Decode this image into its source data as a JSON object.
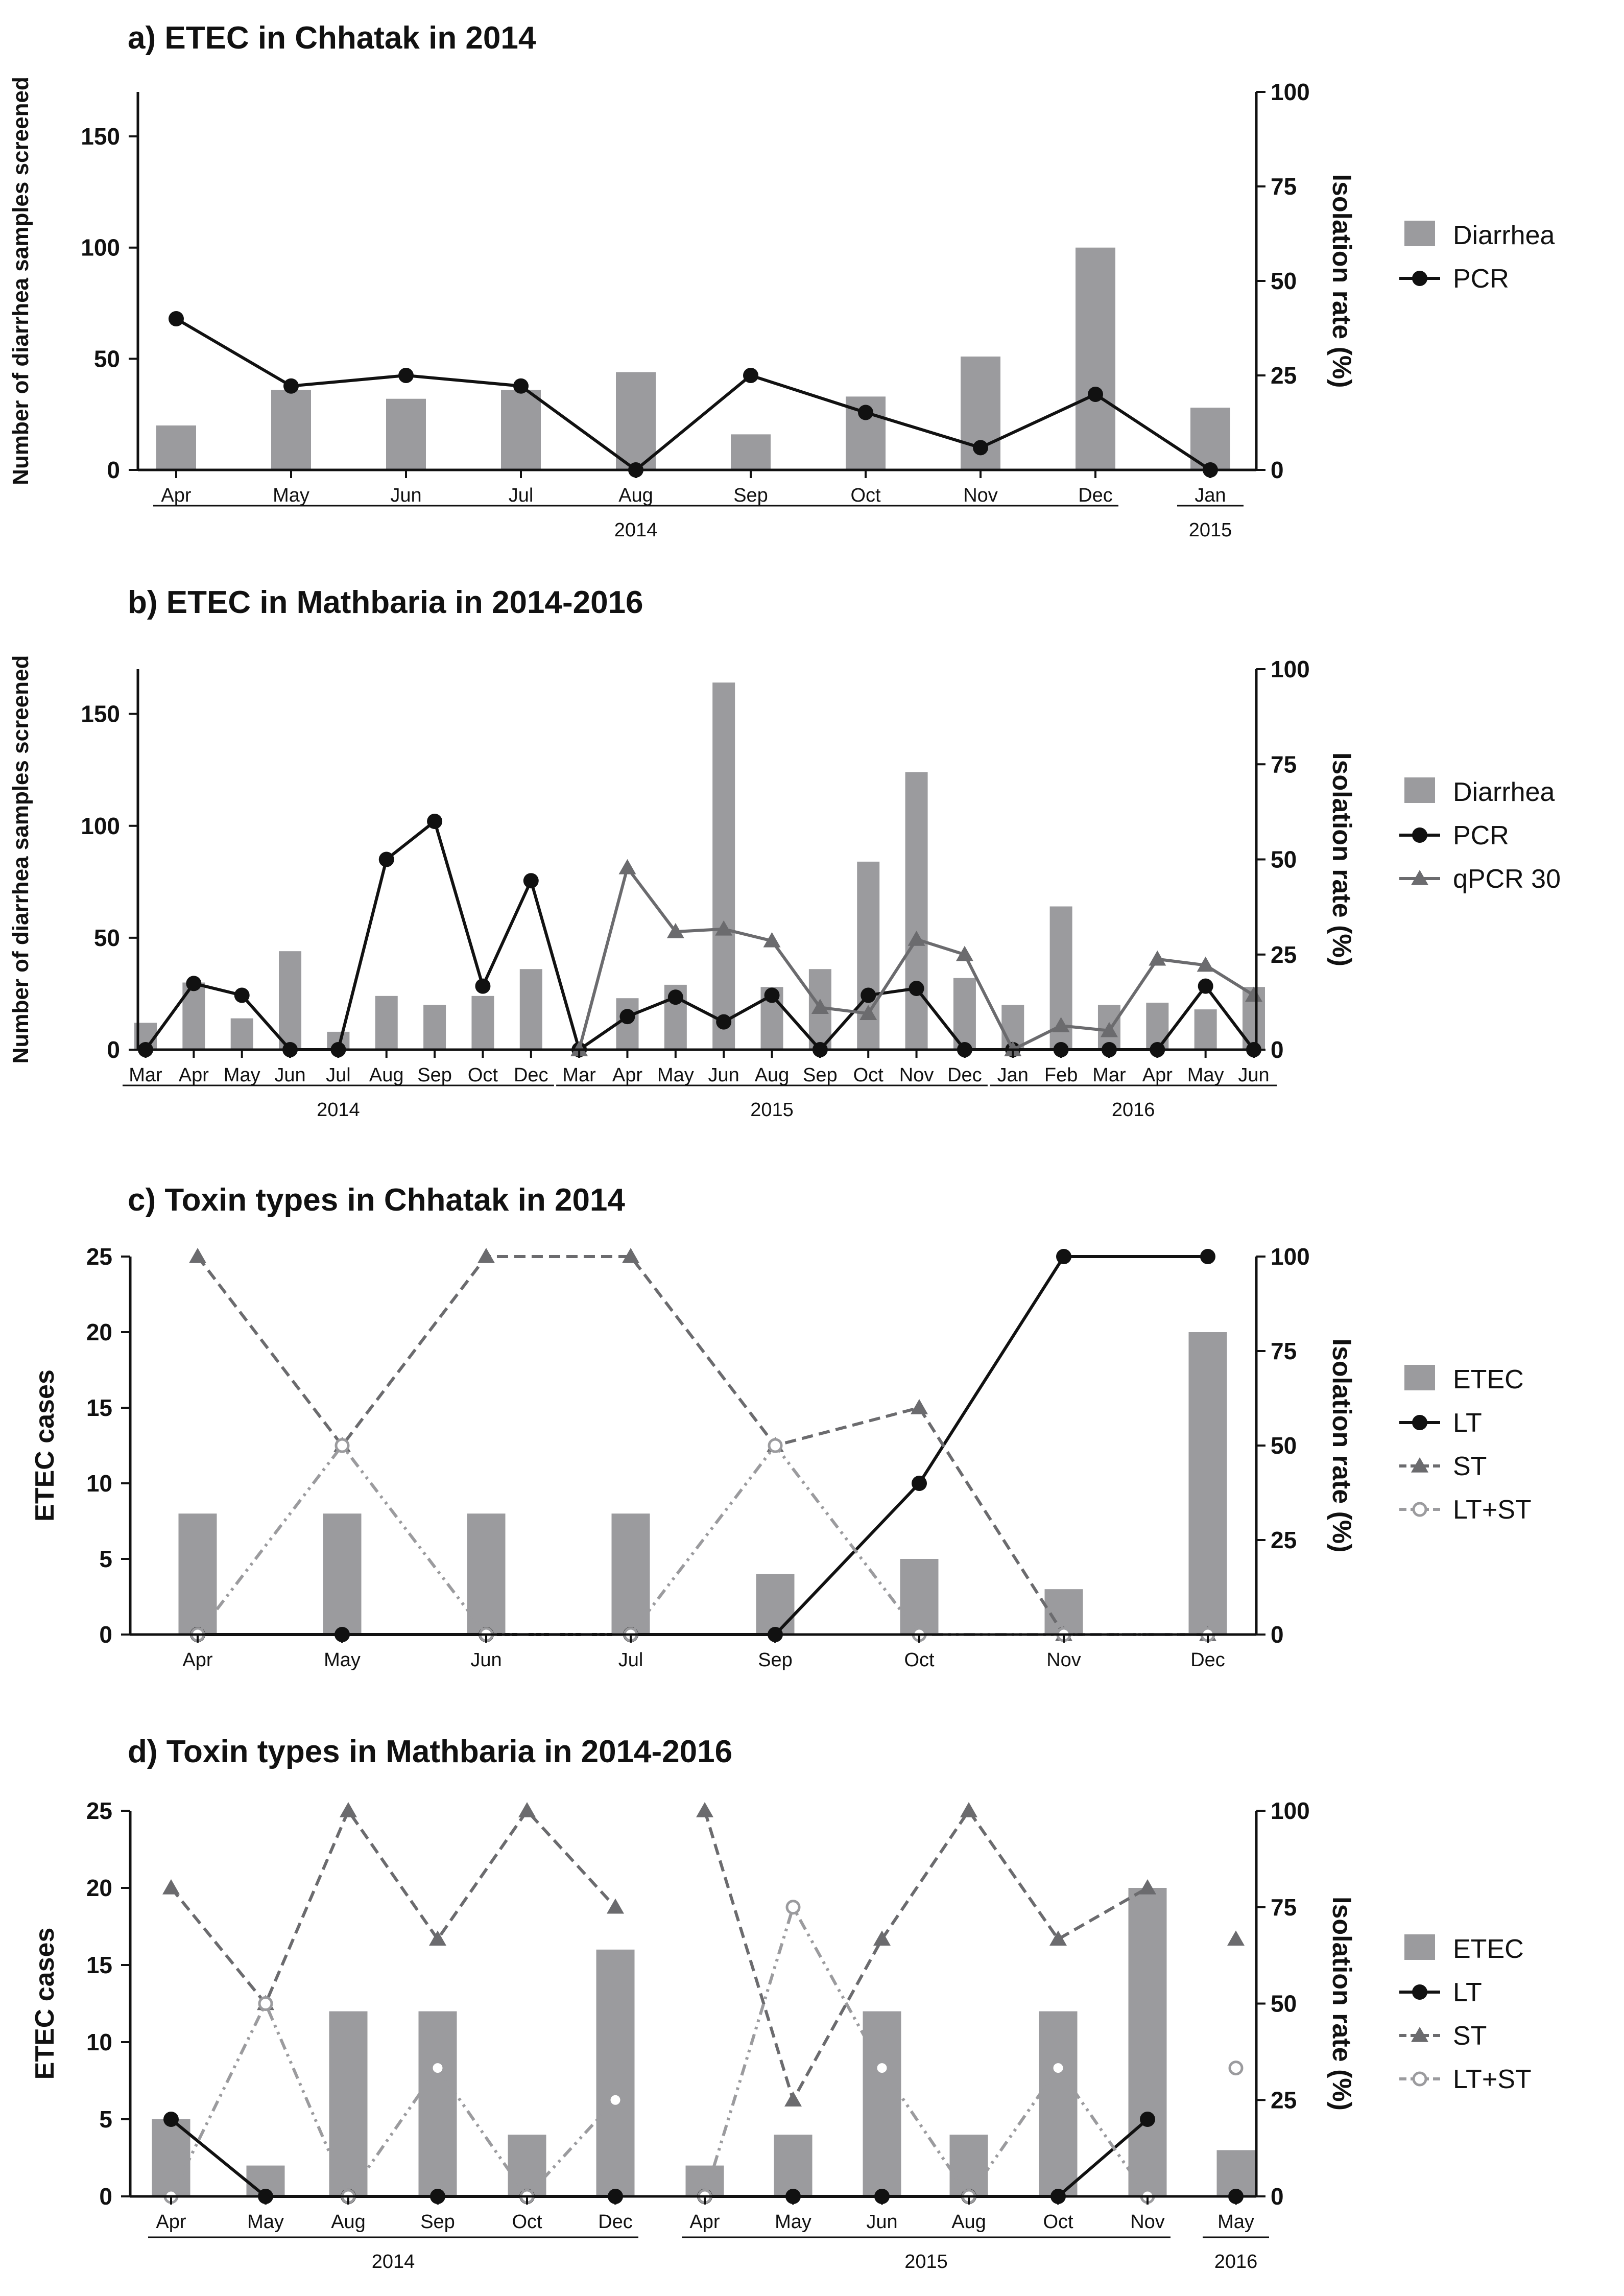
{
  "chart_data": [
    {
      "id": "a",
      "type": "bar+line",
      "title": "a) ETEC in Chhatak in 2014",
      "ylabel_left": "Number of diarrhea samples screened",
      "ylabel_right": "Isolation rate (%)",
      "ylim_left": [
        0,
        170
      ],
      "yticks_left": [
        0,
        50,
        100,
        150
      ],
      "ylim_right": [
        0,
        100
      ],
      "yticks_right": [
        0,
        25,
        50,
        75,
        100
      ],
      "categories": [
        "Apr",
        "May",
        "Jun",
        "Jul",
        "Aug",
        "Sep",
        "Oct",
        "Nov",
        "Dec",
        "Jan"
      ],
      "year_groups": [
        {
          "label": "2014",
          "from": 0,
          "to": 8
        },
        {
          "label": "2015",
          "from": 9,
          "to": 9
        }
      ],
      "bar_series": [
        {
          "name": "Diarrhea",
          "color": "#9b9b9e",
          "values": [
            20,
            36,
            32,
            36,
            44,
            16,
            33,
            51,
            100,
            28
          ]
        }
      ],
      "line_series": [
        {
          "name": "PCR",
          "color": "#111111",
          "marker": "circle",
          "dash": "",
          "values": [
            40,
            22.2,
            25,
            22.2,
            0,
            25,
            15.2,
            5.9,
            20,
            0
          ]
        }
      ],
      "legend": [
        "Diarrhea",
        "PCR"
      ]
    },
    {
      "id": "b",
      "type": "bar+line",
      "title": "b) ETEC in Mathbaria in 2014-2016",
      "ylabel_left": "Number of diarrhea samples screened",
      "ylabel_right": "Isolation rate (%)",
      "ylim_left": [
        0,
        170
      ],
      "yticks_left": [
        0,
        50,
        100,
        150
      ],
      "ylim_right": [
        0,
        100
      ],
      "yticks_right": [
        0,
        25,
        50,
        75,
        100
      ],
      "categories": [
        "Mar",
        "Apr",
        "May",
        "Jun",
        "Jul",
        "Aug",
        "Sep",
        "Oct",
        "Dec",
        "Mar",
        "Apr",
        "May",
        "Jun",
        "Aug",
        "Sep",
        "Oct",
        "Nov",
        "Dec",
        "Jan",
        "Feb",
        "Mar",
        "Apr",
        "May",
        "Jun"
      ],
      "year_groups": [
        {
          "label": "2014",
          "from": 0,
          "to": 8
        },
        {
          "label": "2015",
          "from": 9,
          "to": 17
        },
        {
          "label": "2016",
          "from": 18,
          "to": 23
        }
      ],
      "bar_series": [
        {
          "name": "Diarrhea",
          "color": "#9b9b9e",
          "values": [
            12,
            30,
            14,
            44,
            8,
            24,
            20,
            24,
            36,
            0,
            23,
            29,
            164,
            28,
            36,
            84,
            124,
            32,
            20,
            64,
            20,
            21,
            18,
            28
          ]
        }
      ],
      "line_series": [
        {
          "name": "PCR",
          "color": "#111111",
          "marker": "circle",
          "dash": "",
          "values": [
            0,
            17.4,
            14.3,
            0,
            0,
            50,
            60,
            16.7,
            44.4,
            0,
            8.7,
            13.8,
            7.3,
            14.3,
            0,
            14.3,
            16.1,
            0,
            0,
            0,
            0,
            0,
            16.7,
            0
          ]
        },
        {
          "name": "qPCR 30",
          "color": "#6b6b6e",
          "marker": "triangle",
          "dash": "",
          "values": [
            null,
            null,
            null,
            null,
            null,
            null,
            null,
            null,
            null,
            0,
            47.8,
            31,
            31.7,
            28.6,
            11.1,
            9.5,
            29,
            25,
            0,
            6.3,
            5,
            23.8,
            22.2,
            14.3
          ]
        }
      ],
      "legend": [
        "Diarrhea",
        "PCR",
        "qPCR 30"
      ]
    },
    {
      "id": "c",
      "type": "bar+line",
      "title": "c) Toxin types in Chhatak in 2014",
      "ylabel_left": "ETEC cases",
      "ylabel_right": "Isolation rate (%)",
      "ylim_left": [
        0,
        25
      ],
      "yticks_left": [
        0,
        5,
        10,
        15,
        20,
        25
      ],
      "ylim_right": [
        0,
        100
      ],
      "yticks_right": [
        0,
        25,
        50,
        75,
        100
      ],
      "categories": [
        "Apr",
        "May",
        "Jun",
        "Jul",
        "Sep",
        "Oct",
        "Nov",
        "Dec"
      ],
      "year_groups": [],
      "bar_series": [
        {
          "name": "ETEC",
          "color": "#9b9b9e",
          "values": [
            8,
            8,
            8,
            8,
            4,
            5,
            3,
            20
          ]
        }
      ],
      "line_series": [
        {
          "name": "LT",
          "color": "#111111",
          "marker": "circle",
          "dash": "",
          "values": [
            0,
            0,
            0,
            0,
            0,
            40,
            100,
            100
          ]
        },
        {
          "name": "ST",
          "color": "#6b6b6e",
          "marker": "triangle",
          "dash": "22 12",
          "values": [
            100,
            50,
            100,
            100,
            50,
            60,
            0,
            0
          ]
        },
        {
          "name": "LT+ST",
          "color": "#9b9b9e",
          "marker": "open-circle",
          "dash": "22 10 5 10 5 10",
          "values": [
            0,
            50,
            0,
            0,
            50,
            0,
            0,
            0
          ]
        }
      ],
      "legend": [
        "ETEC",
        "LT",
        "ST",
        "LT+ST"
      ]
    },
    {
      "id": "d",
      "type": "bar+line",
      "title": "d) Toxin types in Mathbaria in 2014-2016",
      "ylabel_left": "ETEC cases",
      "ylabel_right": "Isolation rate (%)",
      "ylim_left": [
        0,
        25
      ],
      "yticks_left": [
        0,
        5,
        10,
        15,
        20,
        25
      ],
      "ylim_right": [
        0,
        100
      ],
      "yticks_right": [
        0,
        25,
        50,
        75,
        100
      ],
      "categories": [
        "Apr",
        "May",
        "Aug",
        "Sep",
        "Oct",
        "Dec",
        "Apr",
        "May",
        "Jun",
        "Aug",
        "Oct",
        "Nov",
        "May"
      ],
      "year_groups": [
        {
          "label": "2014",
          "from": 0,
          "to": 5
        },
        {
          "label": "2015",
          "from": 6,
          "to": 11
        },
        {
          "label": "2016",
          "from": 12,
          "to": 12
        }
      ],
      "bar_series": [
        {
          "name": "ETEC",
          "color": "#9b9b9e",
          "values": [
            5,
            2,
            12,
            12,
            4,
            16,
            2,
            4,
            12,
            4,
            12,
            20,
            3
          ]
        }
      ],
      "line_series": [
        {
          "name": "LT",
          "color": "#111111",
          "marker": "circle",
          "dash": "",
          "values": [
            20,
            0,
            0,
            0,
            0,
            0,
            0,
            0,
            0,
            0,
            0,
            20,
            0
          ]
        },
        {
          "name": "ST",
          "color": "#6b6b6e",
          "marker": "triangle",
          "dash": "22 12",
          "values": [
            80,
            50,
            100,
            66.7,
            100,
            75,
            100,
            25,
            66.7,
            100,
            66.7,
            80,
            66.7
          ]
        },
        {
          "name": "LT+ST",
          "color": "#9b9b9e",
          "marker": "open-circle",
          "dash": "22 10 5 10 5 10",
          "values": [
            0,
            50,
            0,
            33.3,
            0,
            25,
            0,
            75,
            33.3,
            0,
            33.3,
            0,
            33.3
          ]
        }
      ],
      "legend": [
        "ETEC",
        "LT",
        "ST",
        "LT+ST"
      ]
    }
  ]
}
